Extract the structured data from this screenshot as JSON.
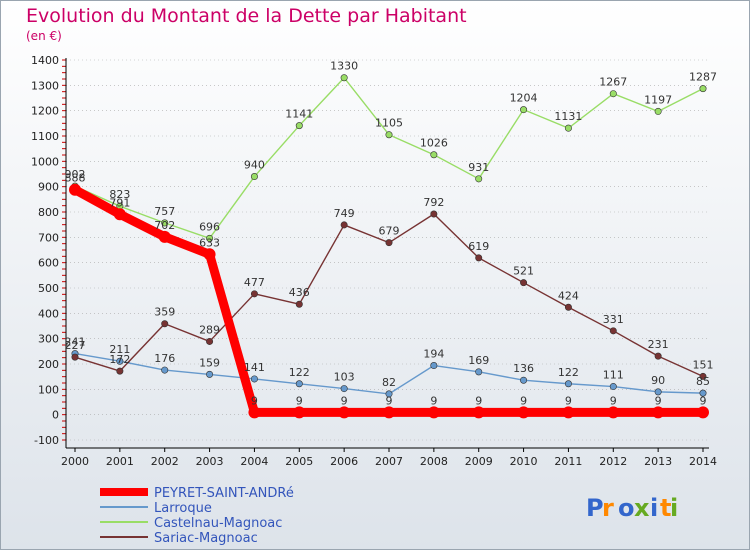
{
  "title": "Evolution du Montant de la Dette par Habitant",
  "subtitle": "(en €)",
  "brand": "Proxiti",
  "colors": {
    "title": "#cc0066",
    "background_top": "#ffffff",
    "background_bottom": "#dde3ea",
    "axis": "#000000",
    "tick_red": "#cc0000",
    "grid": "#999999"
  },
  "chart_data": {
    "type": "line",
    "title": "Evolution du Montant de la Dette par Habitant",
    "subtitle": "(en €)",
    "xlabel": "",
    "ylabel": "",
    "x": [
      "2000",
      "2001",
      "2002",
      "2003",
      "2004",
      "2005",
      "2006",
      "2007",
      "2008",
      "2009",
      "2010",
      "2011",
      "2012",
      "2013",
      "2014"
    ],
    "ylim": [
      -100,
      1400
    ],
    "yticks": [
      "-100",
      "0",
      "100",
      "200",
      "300",
      "400",
      "500",
      "600",
      "700",
      "800",
      "900",
      "1000",
      "1100",
      "1200",
      "1300",
      "1400"
    ],
    "grid": "horizontal-dotted",
    "legend_position": "bottom-left",
    "series": [
      {
        "name": "PEYRET-SAINT-ANDRé",
        "color": "#ff0000",
        "values": [
          888,
          791,
          702,
          633,
          9,
          9,
          9,
          9,
          9,
          9,
          9,
          9,
          9,
          9,
          9
        ],
        "labels": [
          "888",
          "791",
          "702",
          "633",
          "9",
          "9",
          "9",
          "9",
          "9",
          "9",
          "9",
          "9",
          "9",
          "9",
          "9"
        ]
      },
      {
        "name": "Larroque",
        "color": "#6699cc",
        "values": [
          241,
          211,
          176,
          159,
          141,
          122,
          103,
          82,
          194,
          169,
          136,
          122,
          111,
          90,
          85
        ],
        "labels": [
          "241",
          "211",
          "176",
          "159",
          "141",
          "122",
          "103",
          "82",
          "194",
          "169",
          "136",
          "122",
          "111",
          "90",
          "85"
        ]
      },
      {
        "name": "Castelnau-Magnoac",
        "color": "#99dd66",
        "values": [
          902,
          823,
          757,
          696,
          940,
          1141,
          1330,
          1105,
          1026,
          931,
          1204,
          1131,
          1267,
          1197,
          1287
        ],
        "labels": [
          "902",
          "823",
          "757",
          "696",
          "940",
          "1141",
          "1330",
          "1105",
          "1026",
          "931",
          "1204",
          "1131",
          "1267",
          "1197",
          "1287"
        ]
      },
      {
        "name": "Sariac-Magnoac",
        "color": "#773333",
        "values": [
          227,
          172,
          359,
          289,
          477,
          436,
          749,
          679,
          792,
          619,
          521,
          424,
          331,
          231,
          151
        ],
        "labels": [
          "227",
          "172",
          "359",
          "289",
          "477",
          "436",
          "749",
          "679",
          "792",
          "619",
          "521",
          "424",
          "331",
          "231",
          "151"
        ]
      }
    ]
  }
}
